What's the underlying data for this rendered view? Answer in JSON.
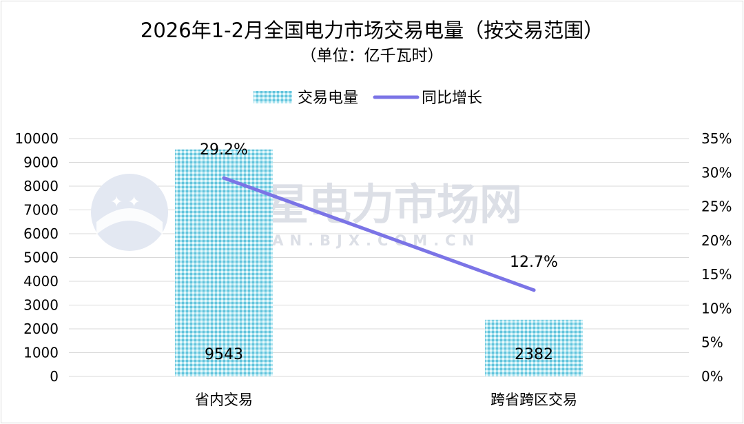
{
  "chart_data": {
    "type": "bar",
    "title": "2026年1-2月全国电力市场交易电量（按交易范围）",
    "subtitle": "（单位：亿千瓦时）",
    "categories": [
      "省内交易",
      "跨省跨区交易"
    ],
    "series": [
      {
        "name": "交易电量",
        "type": "bar",
        "axis": "left",
        "values": [
          9543,
          2382
        ],
        "labels": [
          "9543",
          "2382"
        ],
        "color": "#8fd8e8"
      },
      {
        "name": "同比增长",
        "type": "line",
        "axis": "right",
        "values": [
          29.2,
          12.7
        ],
        "labels": [
          "29.2%",
          "12.7%"
        ],
        "color": "#7b74e6"
      }
    ],
    "y_left": {
      "range": [
        0,
        10000
      ],
      "ticks": [
        "0",
        "1000",
        "2000",
        "3000",
        "4000",
        "5000",
        "6000",
        "7000",
        "8000",
        "9000",
        "10000"
      ]
    },
    "y_right": {
      "range": [
        0,
        35
      ],
      "unit": "%",
      "ticks": [
        "0%",
        "5%",
        "10%",
        "15%",
        "20%",
        "25%",
        "30%",
        "35%"
      ]
    },
    "grid": true,
    "legend": "top-center"
  },
  "watermark": {
    "text": "北极星电力市场网",
    "subtext": "DIAN.BJX.COM.CN"
  }
}
